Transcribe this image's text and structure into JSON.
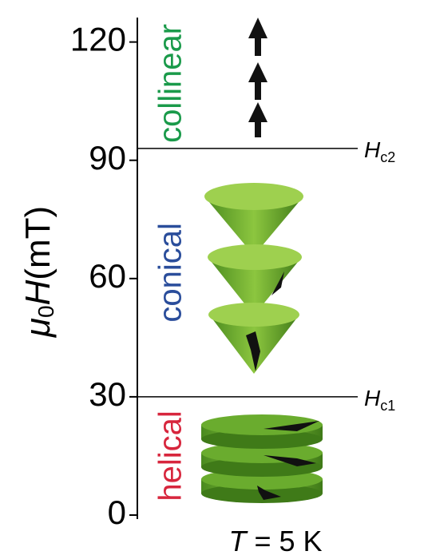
{
  "chart_data": {
    "type": "phase",
    "ylabel": {
      "symbol": "μ",
      "sub": "0",
      "var": "H",
      "unit": "(mT)"
    },
    "xlabel": {
      "var": "T",
      "rest": " = 5 K"
    },
    "ylim": [
      0,
      126
    ],
    "yticks": [
      0,
      30,
      60,
      90,
      120
    ],
    "boundaries": [
      {
        "value": 30,
        "label": "H",
        "sub": "c1"
      },
      {
        "value": 93,
        "label": "H",
        "sub": "c2"
      }
    ],
    "phases": [
      {
        "name": "helical",
        "color": "#d7263d"
      },
      {
        "name": "conical",
        "color": "#2a4d9b"
      },
      {
        "name": "collinear",
        "color": "#1a9a4a"
      }
    ]
  }
}
